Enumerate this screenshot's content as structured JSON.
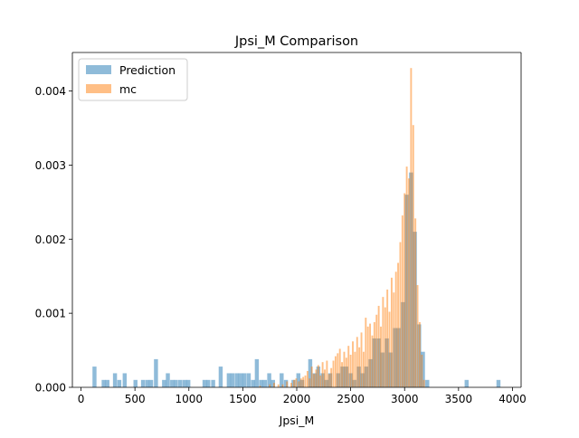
{
  "chart_data": {
    "type": "bar",
    "title": "Jpsi_M Comparison",
    "xlabel": "Jpsi_M",
    "ylabel": "",
    "xlim": [
      -80,
      4080
    ],
    "ylim": [
      0,
      0.00452
    ],
    "xticks": [
      0,
      500,
      1000,
      1500,
      2000,
      2500,
      3000,
      3500,
      4000
    ],
    "xtick_labels": [
      "0",
      "500",
      "1000",
      "1500",
      "2000",
      "2500",
      "3000",
      "3500",
      "4000"
    ],
    "yticks": [
      0,
      0.001,
      0.002,
      0.003,
      0.004
    ],
    "ytick_labels": [
      "0.000",
      "0.001",
      "0.002",
      "0.003",
      "0.004"
    ],
    "legend": {
      "position": "top-left"
    },
    "series": [
      {
        "name": "Prediction",
        "color": "#1f77b4",
        "alpha": 0.5,
        "bin_width": 37.2,
        "bars": [
          [
            125,
            0.00028
          ],
          [
            210,
            0.0001
          ],
          [
            245,
            0.0001
          ],
          [
            315,
            0.00019
          ],
          [
            355,
            0.0001
          ],
          [
            405,
            0.00019
          ],
          [
            505,
            0.0001
          ],
          [
            575,
            0.0001
          ],
          [
            615,
            0.0001
          ],
          [
            650,
            0.0001
          ],
          [
            695,
            0.00038
          ],
          [
            770,
            0.0001
          ],
          [
            805,
            0.00019
          ],
          [
            845,
            0.0001
          ],
          [
            880,
            0.0001
          ],
          [
            920,
            0.0001
          ],
          [
            960,
            0.0001
          ],
          [
            995,
            0.0001
          ],
          [
            1145,
            0.0001
          ],
          [
            1180,
            0.0001
          ],
          [
            1225,
            0.0001
          ],
          [
            1295,
            0.00028
          ],
          [
            1370,
            0.00019
          ],
          [
            1405,
            0.00019
          ],
          [
            1445,
            0.00019
          ],
          [
            1480,
            0.00019
          ],
          [
            1515,
            0.00019
          ],
          [
            1555,
            0.00019
          ],
          [
            1595,
            0.0001
          ],
          [
            1630,
            0.00038
          ],
          [
            1670,
            0.0001
          ],
          [
            1705,
            0.0001
          ],
          [
            1745,
            0.00019
          ],
          [
            1780,
            0.0001
          ],
          [
            1860,
            0.00019
          ],
          [
            1900,
            0.0001
          ],
          [
            1970,
            0.0001
          ],
          [
            2015,
            0.00019
          ],
          [
            2050,
            0.0001
          ],
          [
            2125,
            0.00038
          ],
          [
            2165,
            0.00019
          ],
          [
            2200,
            0.00028
          ],
          [
            2240,
            0.00019
          ],
          [
            2275,
            0.0001
          ],
          [
            2310,
            0.00019
          ],
          [
            2385,
            0.00019
          ],
          [
            2425,
            0.00028
          ],
          [
            2460,
            0.00028
          ],
          [
            2500,
            0.00019
          ],
          [
            2535,
            0.0001
          ],
          [
            2575,
            0.00028
          ],
          [
            2610,
            0.00019
          ],
          [
            2645,
            0.00028
          ],
          [
            2685,
            0.00038
          ],
          [
            2720,
            0.00066
          ],
          [
            2760,
            0.00066
          ],
          [
            2795,
            0.00047
          ],
          [
            2835,
            0.00066
          ],
          [
            2870,
            0.00047
          ],
          [
            2910,
            0.0008
          ],
          [
            2945,
            0.0008
          ],
          [
            2985,
            0.00115
          ],
          [
            3020,
            0.0026
          ],
          [
            3060,
            0.0029
          ],
          [
            3095,
            0.0021
          ],
          [
            3135,
            0.00085
          ],
          [
            3170,
            0.00048
          ],
          [
            3210,
            0.0001
          ],
          [
            3575,
            0.0001
          ],
          [
            3870,
            0.0001
          ]
        ]
      },
      {
        "name": "mc",
        "color": "#ff7f0e",
        "alpha": 0.5,
        "bin_width": 16,
        "bars": [
          [
            1660,
            2e-05
          ],
          [
            1750,
            4e-05
          ],
          [
            1790,
            6e-05
          ],
          [
            1830,
            4e-05
          ],
          [
            1870,
            4e-05
          ],
          [
            1910,
            8e-05
          ],
          [
            1950,
            6e-05
          ],
          [
            1975,
            0.0001
          ],
          [
            1995,
            0.00012
          ],
          [
            2020,
            8e-05
          ],
          [
            2040,
            0.00012
          ],
          [
            2060,
            0.00014
          ],
          [
            2080,
            0.00016
          ],
          [
            2100,
            0.00022
          ],
          [
            2120,
            0.00012
          ],
          [
            2140,
            0.00028
          ],
          [
            2160,
            0.00018
          ],
          [
            2180,
            0.00024
          ],
          [
            2200,
            0.0003
          ],
          [
            2220,
            0.00016
          ],
          [
            2240,
            0.00034
          ],
          [
            2260,
            0.00024
          ],
          [
            2280,
            0.00036
          ],
          [
            2300,
            0.00018
          ],
          [
            2320,
            0.00026
          ],
          [
            2340,
            0.00036
          ],
          [
            2360,
            0.00042
          ],
          [
            2380,
            0.00046
          ],
          [
            2400,
            0.00052
          ],
          [
            2420,
            0.00034
          ],
          [
            2440,
            0.00048
          ],
          [
            2460,
            0.0004
          ],
          [
            2480,
            0.00056
          ],
          [
            2500,
            0.00044
          ],
          [
            2520,
            0.00062
          ],
          [
            2540,
            0.00048
          ],
          [
            2560,
            0.00068
          ],
          [
            2580,
            0.00054
          ],
          [
            2600,
            0.00074
          ],
          [
            2620,
            0.00048
          ],
          [
            2640,
            0.00094
          ],
          [
            2660,
            0.00082
          ],
          [
            2680,
            0.00086
          ],
          [
            2700,
            0.0007
          ],
          [
            2720,
            0.00088
          ],
          [
            2740,
            0.00098
          ],
          [
            2760,
            0.0011
          ],
          [
            2780,
            0.00082
          ],
          [
            2800,
            0.00122
          ],
          [
            2820,
            0.00108
          ],
          [
            2840,
            0.00132
          ],
          [
            2860,
            0.00102
          ],
          [
            2880,
            0.00148
          ],
          [
            2900,
            0.00128
          ],
          [
            2920,
            0.00156
          ],
          [
            2940,
            0.00168
          ],
          [
            2960,
            0.00196
          ],
          [
            2980,
            0.00232
          ],
          [
            3000,
            0.00262
          ],
          [
            3020,
            0.00298
          ],
          [
            3040,
            0.00282
          ],
          [
            3060,
            0.00431
          ],
          [
            3080,
            0.00354
          ],
          [
            3100,
            0.00228
          ],
          [
            3120,
            0.00138
          ],
          [
            3140,
            0.00088
          ],
          [
            3160,
            0.00044
          ],
          [
            3180,
            0.0001
          ]
        ]
      }
    ]
  }
}
